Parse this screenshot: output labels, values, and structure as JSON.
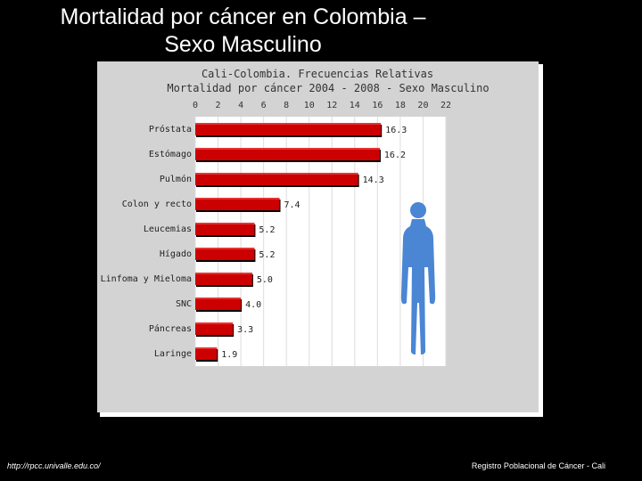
{
  "slide": {
    "title_line1": "Mortalidad por cáncer en Colombia –",
    "title_line2": "Sexo Masculino",
    "footer_left": "http://rpcc.univalle.edu.co/",
    "footer_right": "Registro Poblacional de Cáncer - Cali"
  },
  "chart_data": {
    "type": "bar",
    "orientation": "horizontal",
    "title": "Cali-Colombia. Frecuencias Relativas",
    "subtitle": "Mortalidad por cáncer 2004 - 2008 - Sexo Masculino",
    "categories": [
      "Próstata",
      "Estómago",
      "Pulmón",
      "Colon y recto",
      "Leucemias",
      "Hígado",
      "Linfoma y Mieloma",
      "SNC",
      "Páncreas",
      "Laringe"
    ],
    "values": [
      16.3,
      16.2,
      14.3,
      7.4,
      5.2,
      5.2,
      5.0,
      4.0,
      3.3,
      1.9
    ],
    "value_labels": [
      "16.3",
      "16.2",
      "14.3",
      "7.4",
      "5.2",
      "5.2",
      "5.0",
      "4.0",
      "3.3",
      "1.9"
    ],
    "xticks": [
      "0",
      "2",
      "4",
      "6",
      "8",
      "10",
      "12",
      "14",
      "16",
      "18",
      "20",
      "22"
    ],
    "xlim": [
      0,
      22
    ],
    "xaxis_position": "top",
    "grid": true,
    "bar_color": "#cc0000",
    "decoration": "human-silhouette-icon",
    "decoration_color": "#4a86d4"
  }
}
